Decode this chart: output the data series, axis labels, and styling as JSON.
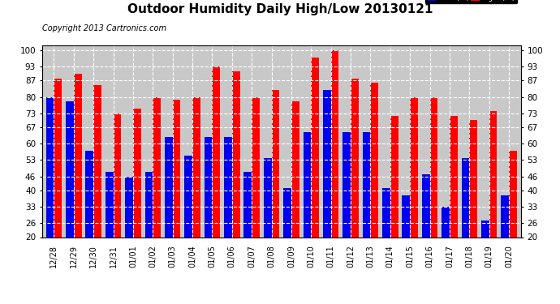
{
  "title": "Outdoor Humidity Daily High/Low 20130121",
  "copyright": "Copyright 2013 Cartronics.com",
  "categories": [
    "12/28",
    "12/29",
    "12/30",
    "12/31",
    "01/01",
    "01/02",
    "01/03",
    "01/04",
    "01/05",
    "01/06",
    "01/07",
    "01/08",
    "01/09",
    "01/10",
    "01/11",
    "01/12",
    "01/13",
    "01/14",
    "01/15",
    "01/16",
    "01/17",
    "01/18",
    "01/19",
    "01/20"
  ],
  "high_values": [
    88,
    90,
    85,
    73,
    75,
    80,
    79,
    80,
    93,
    91,
    80,
    83,
    78,
    97,
    100,
    88,
    86,
    72,
    80,
    80,
    72,
    70,
    74,
    57
  ],
  "low_values": [
    80,
    78,
    57,
    48,
    46,
    48,
    63,
    55,
    63,
    63,
    48,
    54,
    41,
    65,
    83,
    65,
    65,
    41,
    38,
    47,
    33,
    54,
    27,
    38
  ],
  "high_color": "#FF0000",
  "low_color": "#0000EE",
  "bg_color": "#FFFFFF",
  "plot_bg_color": "#C8C8C8",
  "ylim": [
    20,
    102
  ],
  "yticks": [
    20,
    26,
    33,
    40,
    46,
    53,
    60,
    67,
    73,
    80,
    87,
    93,
    100
  ],
  "grid_color": "#FFFFFF",
  "title_fontsize": 11,
  "copyright_fontsize": 7,
  "legend_low_label": "Low  (%)",
  "legend_high_label": "High  (%)"
}
